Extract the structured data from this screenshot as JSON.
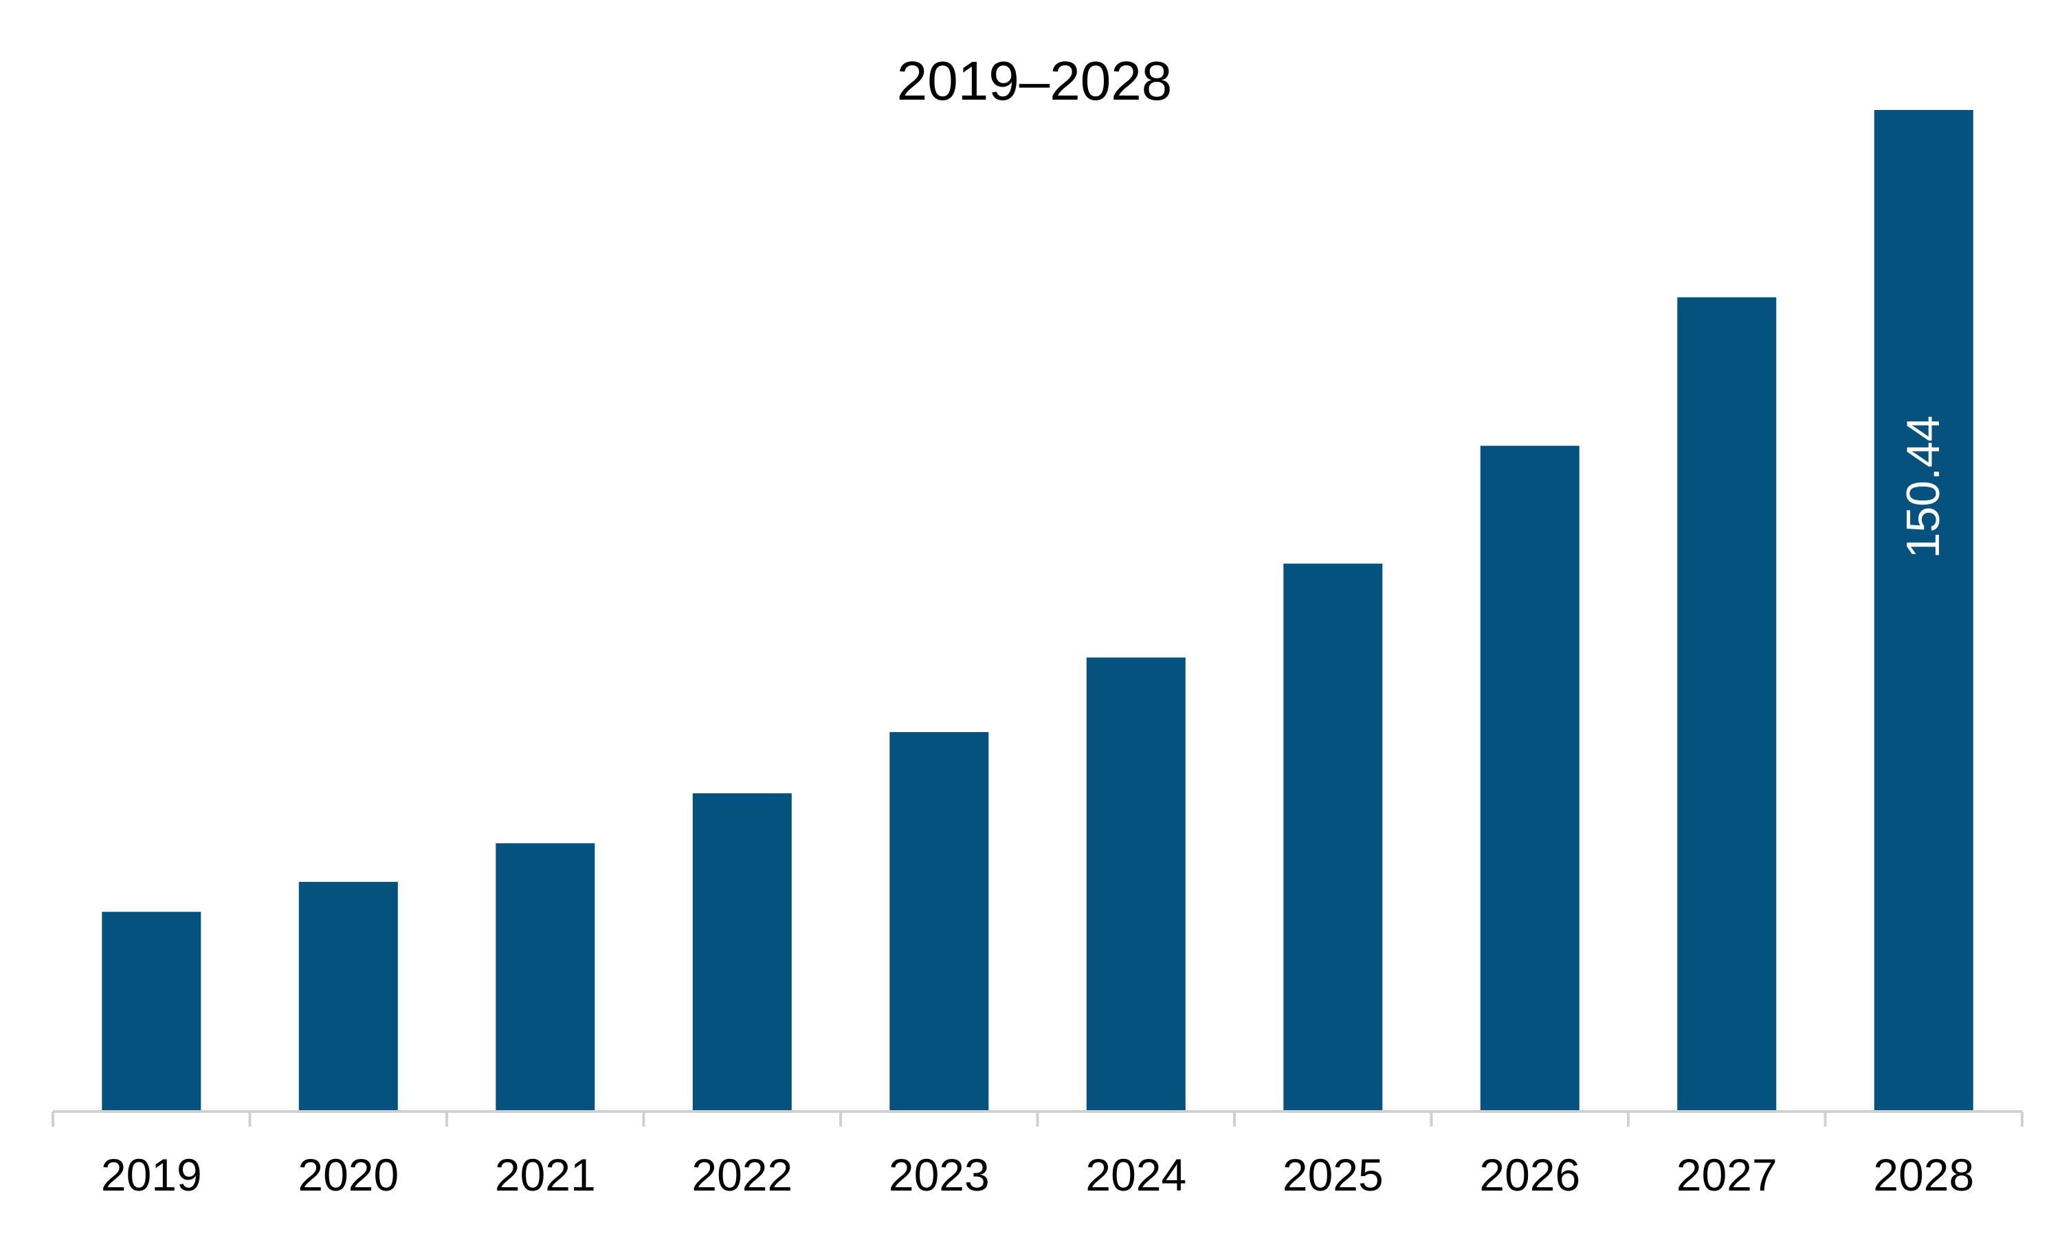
{
  "chart_data": {
    "type": "bar",
    "title": "2019–2028",
    "xlabel": "",
    "ylabel": "",
    "categories": [
      "2019",
      "2020",
      "2021",
      "2022",
      "2023",
      "2024",
      "2025",
      "2026",
      "2027",
      "2028"
    ],
    "values": [
      30.0,
      34.5,
      40.3,
      47.8,
      57.0,
      68.2,
      82.3,
      100.0,
      122.3,
      150.44
    ],
    "data_labels": [
      "",
      "",
      "",
      "",
      "",
      "",
      "",
      "",
      "",
      "150.44"
    ],
    "ylim": [
      0,
      150.44
    ],
    "grid": false,
    "legend": "none",
    "bar_color": "#06527F",
    "axis_color": "#D0D0D0"
  }
}
